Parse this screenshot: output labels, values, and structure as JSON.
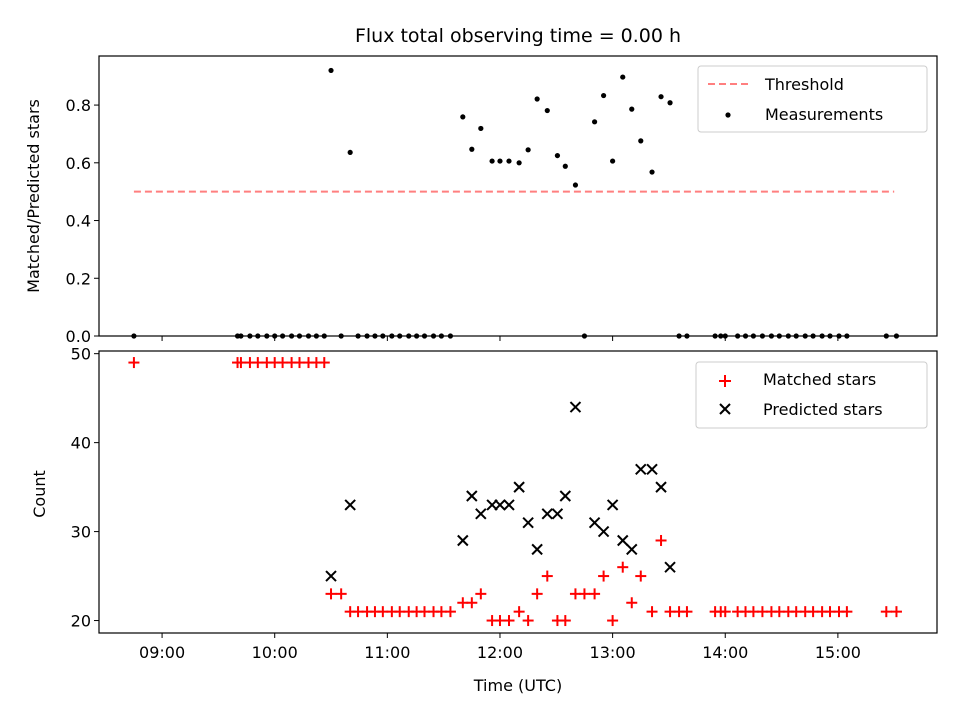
{
  "chart_data": [
    {
      "type": "scatter",
      "title": "Flux total observing time = 0.00 h",
      "xlabel": "",
      "ylabel": "Matched/Predicted stars",
      "xlim": [
        8.44,
        15.88
      ],
      "ylim": [
        0.0,
        0.97
      ],
      "xticks": [
        9,
        10,
        11,
        12,
        13,
        14,
        15
      ],
      "yticks": [
        0.0,
        0.2,
        0.4,
        0.6,
        0.8
      ],
      "ytick_labels": [
        "0.0",
        "0.2",
        "0.4",
        "0.6",
        "0.8"
      ],
      "legend": {
        "placement": "upper right",
        "entries": [
          "Threshold",
          "Measurements"
        ]
      },
      "threshold": {
        "name": "Threshold",
        "value": 0.5,
        "x_range": [
          8.75,
          15.5
        ],
        "color": "#ff7f7f"
      },
      "series": [
        {
          "name": "Measurements",
          "color": "#000000",
          "x": [
            8.75,
            9.67,
            9.7,
            9.78,
            9.85,
            9.93,
            10.0,
            10.07,
            10.15,
            10.22,
            10.3,
            10.37,
            10.44,
            10.5,
            10.59,
            10.67,
            10.74,
            10.82,
            10.89,
            10.96,
            11.04,
            11.11,
            11.19,
            11.26,
            11.33,
            11.41,
            11.48,
            11.56,
            11.67,
            11.75,
            11.83,
            11.93,
            12.0,
            12.08,
            12.17,
            12.25,
            12.33,
            12.42,
            12.51,
            12.58,
            12.67,
            12.75,
            12.84,
            12.92,
            13.0,
            13.09,
            13.17,
            13.25,
            13.35,
            13.43,
            13.51,
            13.59,
            13.66,
            13.91,
            13.96,
            14.0,
            14.11,
            14.18,
            14.25,
            14.33,
            14.41,
            14.48,
            14.56,
            14.63,
            14.71,
            14.78,
            14.86,
            14.93,
            15.01,
            15.08,
            15.43,
            15.52
          ],
          "y": [
            0.0,
            0.0,
            0.0,
            0.0,
            0.0,
            0.0,
            0.0,
            0.0,
            0.0,
            0.0,
            0.0,
            0.0,
            0.0,
            0.92,
            0.0,
            0.636,
            0.0,
            0.0,
            0.0,
            0.0,
            0.0,
            0.0,
            0.0,
            0.0,
            0.0,
            0.0,
            0.0,
            0.0,
            0.759,
            0.647,
            0.719,
            0.606,
            0.606,
            0.606,
            0.6,
            0.645,
            0.821,
            0.781,
            0.625,
            0.588,
            0.523,
            0.0,
            0.742,
            0.833,
            0.606,
            0.897,
            0.786,
            0.676,
            0.568,
            0.829,
            0.808,
            0.0,
            0.0,
            0.0,
            0.0,
            0.0,
            0.0,
            0.0,
            0.0,
            0.0,
            0.0,
            0.0,
            0.0,
            0.0,
            0.0,
            0.0,
            0.0,
            0.0,
            0.0,
            0.0,
            0.0,
            0.0
          ]
        }
      ]
    },
    {
      "type": "scatter",
      "title": "",
      "xlabel": "Time (UTC)",
      "ylabel": "Count",
      "xlim": [
        8.44,
        15.88
      ],
      "ylim": [
        18.6,
        50.3
      ],
      "xticks": [
        9,
        10,
        11,
        12,
        13,
        14,
        15
      ],
      "xtick_labels": [
        "09:00",
        "10:00",
        "11:00",
        "12:00",
        "13:00",
        "14:00",
        "15:00"
      ],
      "yticks": [
        20,
        30,
        40,
        50
      ],
      "ytick_labels": [
        "20",
        "30",
        "40",
        "50"
      ],
      "legend": {
        "placement": "upper right",
        "entries": [
          "Matched stars",
          "Predicted stars"
        ]
      },
      "series": [
        {
          "name": "Matched stars",
          "marker": "plus",
          "color": "#ff0000",
          "x": [
            8.75,
            9.67,
            9.7,
            9.78,
            9.85,
            9.93,
            10.0,
            10.07,
            10.15,
            10.22,
            10.3,
            10.37,
            10.44,
            10.5,
            10.59,
            10.67,
            10.74,
            10.82,
            10.89,
            10.96,
            11.04,
            11.11,
            11.19,
            11.26,
            11.33,
            11.41,
            11.48,
            11.56,
            11.67,
            11.75,
            11.83,
            11.93,
            12.0,
            12.08,
            12.17,
            12.25,
            12.33,
            12.42,
            12.51,
            12.58,
            12.67,
            12.75,
            12.84,
            12.92,
            13.0,
            13.09,
            13.17,
            13.25,
            13.35,
            13.43,
            13.51,
            13.59,
            13.66,
            13.91,
            13.96,
            14.0,
            14.11,
            14.18,
            14.25,
            14.33,
            14.41,
            14.48,
            14.56,
            14.63,
            14.71,
            14.78,
            14.86,
            14.93,
            15.01,
            15.08,
            15.43,
            15.52
          ],
          "y": [
            49,
            49,
            49,
            49,
            49,
            49,
            49,
            49,
            49,
            49,
            49,
            49,
            49,
            23,
            23,
            21,
            21,
            21,
            21,
            21,
            21,
            21,
            21,
            21,
            21,
            21,
            21,
            21,
            22,
            22,
            23,
            20,
            20,
            20,
            21,
            20,
            23,
            25,
            20,
            20,
            23,
            23,
            23,
            25,
            20,
            26,
            22,
            25,
            21,
            29,
            21,
            21,
            21,
            21,
            21,
            21,
            21,
            21,
            21,
            21,
            21,
            21,
            21,
            21,
            21,
            21,
            21,
            21,
            21,
            21,
            21,
            21
          ]
        },
        {
          "name": "Predicted stars",
          "marker": "x",
          "color": "#000000",
          "x": [
            10.5,
            10.67,
            11.67,
            11.75,
            11.83,
            11.93,
            12.0,
            12.08,
            12.17,
            12.25,
            12.33,
            12.42,
            12.51,
            12.58,
            12.67,
            12.84,
            12.92,
            13.0,
            13.09,
            13.17,
            13.25,
            13.35,
            13.43,
            13.51
          ],
          "y": [
            25,
            33,
            29,
            34,
            32,
            33,
            33,
            33,
            35,
            31,
            28,
            32,
            32,
            34,
            44,
            31,
            30,
            33,
            29,
            28,
            37,
            37,
            35,
            26
          ]
        }
      ]
    }
  ]
}
